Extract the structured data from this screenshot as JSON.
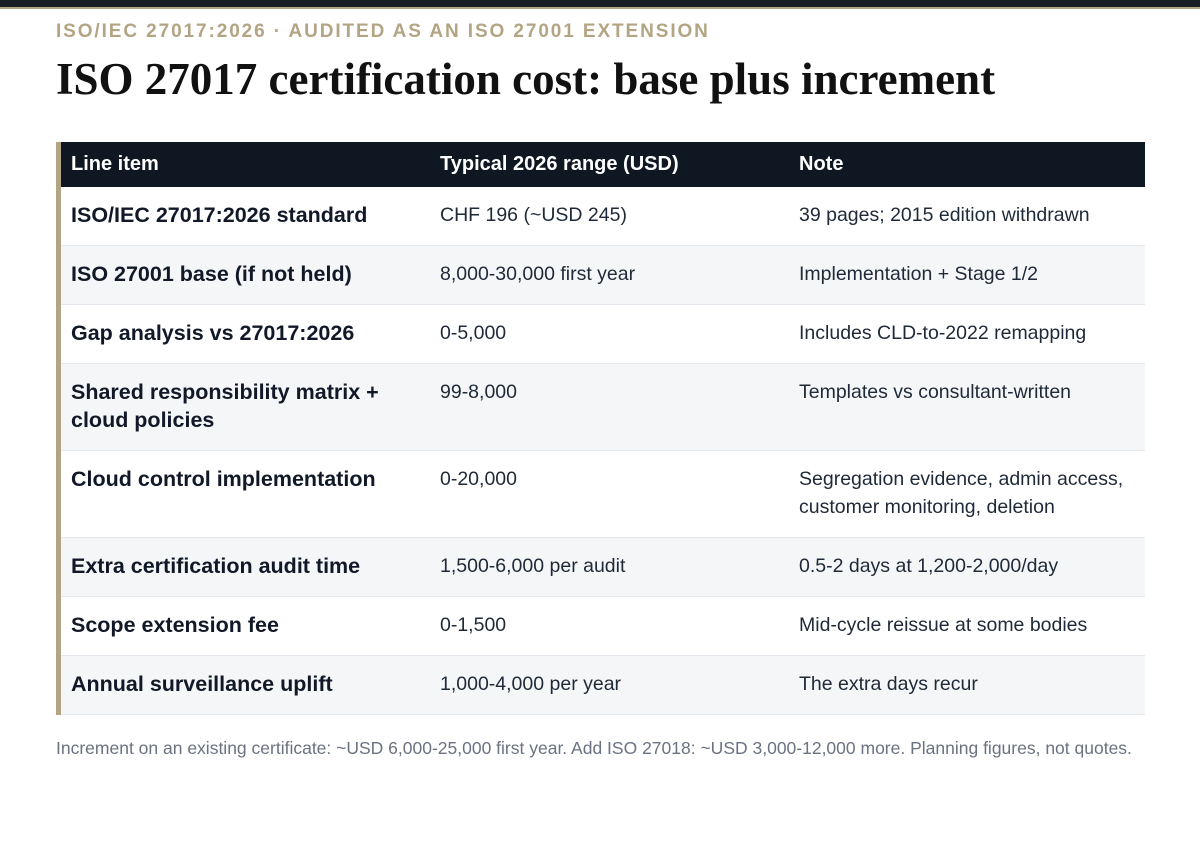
{
  "header": {
    "eyebrow": "ISO/IEC 27017:2026 · AUDITED AS AN ISO 27001 EXTENSION",
    "title": "ISO 27017 certification cost: base plus increment"
  },
  "colors": {
    "accent": "#b3a584",
    "header_bg": "#0f1722",
    "stripe": "#f4f6f8"
  },
  "table": {
    "columns": [
      "Line item",
      "Typical 2026 range (USD)",
      "Note"
    ],
    "rows": [
      [
        "ISO/IEC 27017:2026 standard",
        "CHF 196 (~USD 245)",
        "39 pages; 2015 edition withdrawn"
      ],
      [
        "ISO 27001 base (if not held)",
        "8,000-30,000 first year",
        "Implementation + Stage 1/2"
      ],
      [
        "Gap analysis vs 27017:2026",
        "0-5,000",
        "Includes CLD-to-2022 remapping"
      ],
      [
        "Shared responsibility matrix + cloud policies",
        "99-8,000",
        "Templates vs consultant-written"
      ],
      [
        "Cloud control implementation",
        "0-20,000",
        "Segregation evidence, admin access, customer monitoring, deletion"
      ],
      [
        "Extra certification audit time",
        "1,500-6,000 per audit",
        "0.5-2 days at 1,200-2,000/day"
      ],
      [
        "Scope extension fee",
        "0-1,500",
        "Mid-cycle reissue at some bodies"
      ],
      [
        "Annual surveillance uplift",
        "1,000-4,000 per year",
        "The extra days recur"
      ]
    ]
  },
  "footnote": "Increment on an existing certificate: ~USD 6,000-25,000 first year. Add ISO 27018: ~USD 3,000-12,000 more. Planning figures, not quotes."
}
